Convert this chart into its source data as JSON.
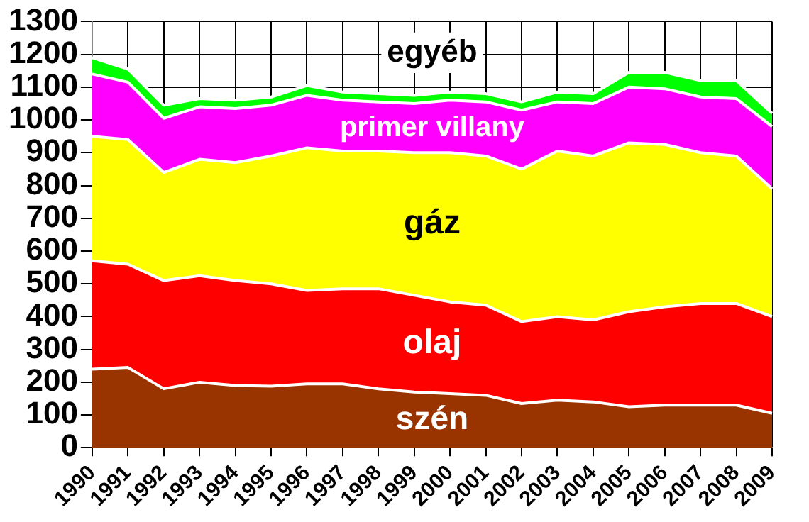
{
  "chart_data": {
    "type": "area",
    "stacked": true,
    "categories": [
      "1990",
      "1991",
      "1992",
      "1993",
      "1994",
      "1995",
      "1996",
      "1997",
      "1998",
      "1999",
      "2000",
      "2001",
      "2002",
      "2003",
      "2004",
      "2005",
      "2006",
      "2007",
      "2008",
      "2009"
    ],
    "series": [
      {
        "name": "szén",
        "color": "#993300",
        "values": [
          240,
          245,
          180,
          200,
          190,
          188,
          195,
          195,
          180,
          170,
          165,
          160,
          135,
          145,
          140,
          125,
          130,
          130,
          130,
          105
        ]
      },
      {
        "name": "olaj",
        "color": "#ff0000",
        "values": [
          330,
          315,
          330,
          325,
          320,
          312,
          285,
          290,
          305,
          295,
          280,
          275,
          250,
          255,
          250,
          290,
          300,
          310,
          310,
          295
        ]
      },
      {
        "name": "gáz",
        "color": "#ffff00",
        "values": [
          380,
          380,
          330,
          355,
          360,
          390,
          435,
          420,
          420,
          435,
          455,
          455,
          465,
          505,
          500,
          515,
          495,
          460,
          450,
          390
        ]
      },
      {
        "name": "primer villany",
        "color": "#ff00ff",
        "values": [
          190,
          175,
          165,
          160,
          165,
          155,
          160,
          155,
          150,
          150,
          160,
          165,
          180,
          150,
          160,
          170,
          170,
          170,
          175,
          190
        ]
      },
      {
        "name": "egyéb",
        "color": "#00ff00",
        "values": [
          50,
          40,
          40,
          25,
          25,
          25,
          30,
          25,
          25,
          25,
          25,
          25,
          25,
          30,
          30,
          45,
          50,
          50,
          55,
          40
        ]
      }
    ],
    "ylim": [
      0,
      1300
    ],
    "yticks": [
      0,
      100,
      200,
      300,
      400,
      500,
      600,
      700,
      800,
      900,
      1000,
      1100,
      1200,
      1300
    ],
    "grid": true,
    "legend": false
  }
}
